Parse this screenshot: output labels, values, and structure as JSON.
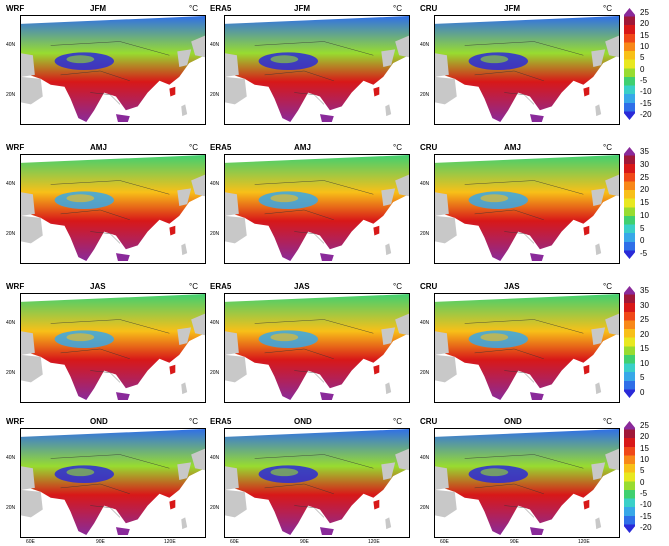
{
  "rows": [
    {
      "season": "JFM",
      "colorbar": {
        "ticks": [
          "25",
          "20",
          "15",
          "10",
          "5",
          "0",
          "-5",
          "-10",
          "-15",
          "-20"
        ]
      },
      "panels": [
        "WRF",
        "ERA5",
        "CRU"
      ]
    },
    {
      "season": "AMJ",
      "colorbar": {
        "ticks": [
          "35",
          "30",
          "25",
          "20",
          "15",
          "10",
          "5",
          "0",
          "-5"
        ]
      },
      "panels": [
        "WRF",
        "ERA5",
        "CRU"
      ]
    },
    {
      "season": "JAS",
      "colorbar": {
        "ticks": [
          "35",
          "30",
          "25",
          "20",
          "15",
          "10",
          "5",
          "0"
        ]
      },
      "panels": [
        "WRF",
        "ERA5",
        "CRU"
      ]
    },
    {
      "season": "OND",
      "colorbar": {
        "ticks": [
          "25",
          "20",
          "15",
          "10",
          "5",
          "0",
          "-5",
          "-10",
          "-15",
          "-20"
        ]
      },
      "panels": [
        "WRF",
        "ERA5",
        "CRU"
      ]
    }
  ],
  "unit": "°C",
  "lat_labels": [
    "40N",
    "20N"
  ],
  "lon_labels": [
    "60E",
    "90E",
    "120E"
  ],
  "palette": [
    "#2a2ad8",
    "#2f6fe8",
    "#38a8e8",
    "#3ad0c8",
    "#40d070",
    "#98dc30",
    "#e8e820",
    "#f8c018",
    "#f88818",
    "#f04818",
    "#d81818",
    "#a01838",
    "#8a2a9a"
  ]
}
